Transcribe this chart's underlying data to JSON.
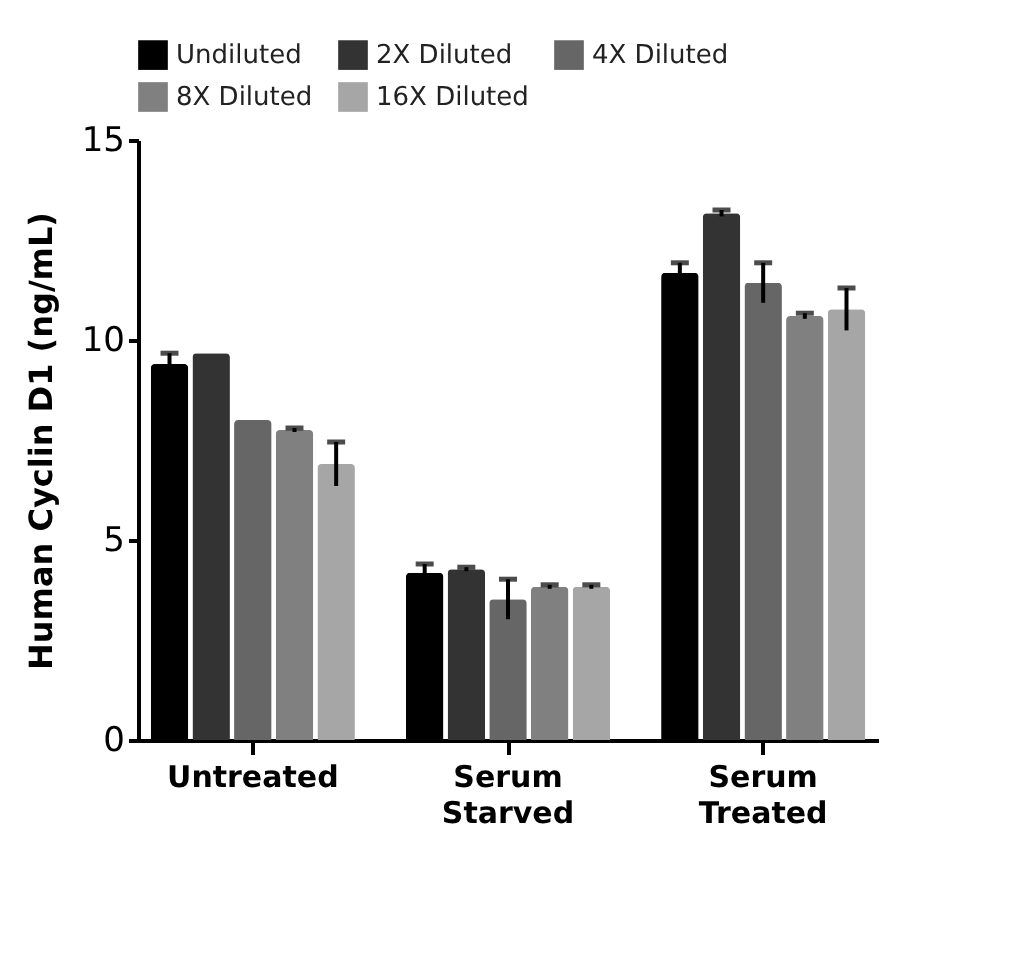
{
  "chart_data": {
    "type": "bar",
    "ylabel": "Human Cyclin D1 (ng/mL)",
    "categories": [
      "Untreated",
      "Serum Starved",
      "Serum Treated"
    ],
    "series": [
      {
        "name": "Undiluted",
        "color": "#000000",
        "values": [
          9.4,
          4.18,
          11.68
        ],
        "errors": [
          0.27,
          0.22,
          0.25
        ]
      },
      {
        "name": "2X Diluted",
        "color": "#333333",
        "values": [
          9.67,
          4.27,
          13.17
        ],
        "errors": [
          null,
          0.05,
          0.08
        ]
      },
      {
        "name": "4X Diluted",
        "color": "#666666",
        "values": [
          8.0,
          3.52,
          11.43
        ],
        "errors": [
          null,
          0.5,
          0.5
        ]
      },
      {
        "name": "8X Diluted",
        "color": "#808080",
        "values": [
          7.75,
          3.83,
          10.6
        ],
        "errors": [
          0.05,
          0.05,
          0.07
        ]
      },
      {
        "name": "16X Diluted",
        "color": "#a6a6a6",
        "values": [
          6.9,
          3.83,
          10.77
        ],
        "errors": [
          0.55,
          0.05,
          0.53
        ]
      }
    ],
    "ylim": [
      0,
      15
    ],
    "yticks": [
      0,
      5,
      10,
      15
    ],
    "grid": false,
    "legend": "top"
  }
}
